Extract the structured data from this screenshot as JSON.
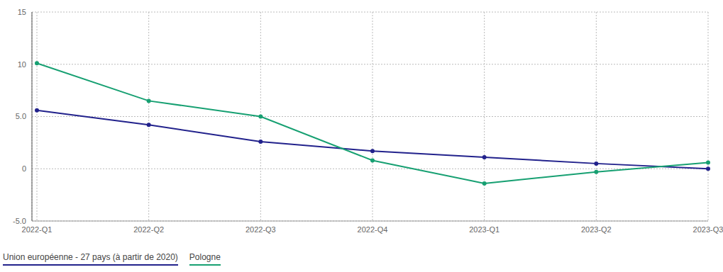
{
  "chart_data": {
    "type": "line",
    "categories": [
      "2022-Q1",
      "2022-Q2",
      "2022-Q3",
      "2022-Q4",
      "2023-Q1",
      "2023-Q2",
      "2023-Q3"
    ],
    "series": [
      {
        "name": "Union européenne - 27 pays (à partir de 2020)",
        "color": "#22228c",
        "values": [
          5.6,
          4.2,
          2.6,
          1.7,
          1.1,
          0.5,
          0.0
        ]
      },
      {
        "name": "Pologne",
        "color": "#17a072",
        "values": [
          10.1,
          6.5,
          5.0,
          0.8,
          -1.4,
          -0.3,
          0.6
        ]
      }
    ],
    "ylim": [
      -5,
      15
    ],
    "yticks": [
      {
        "value": -5,
        "label": "-5.0"
      },
      0,
      {
        "value": 5,
        "label": "5.0"
      },
      10,
      15
    ],
    "grid": true,
    "legend": "bottom-left"
  }
}
